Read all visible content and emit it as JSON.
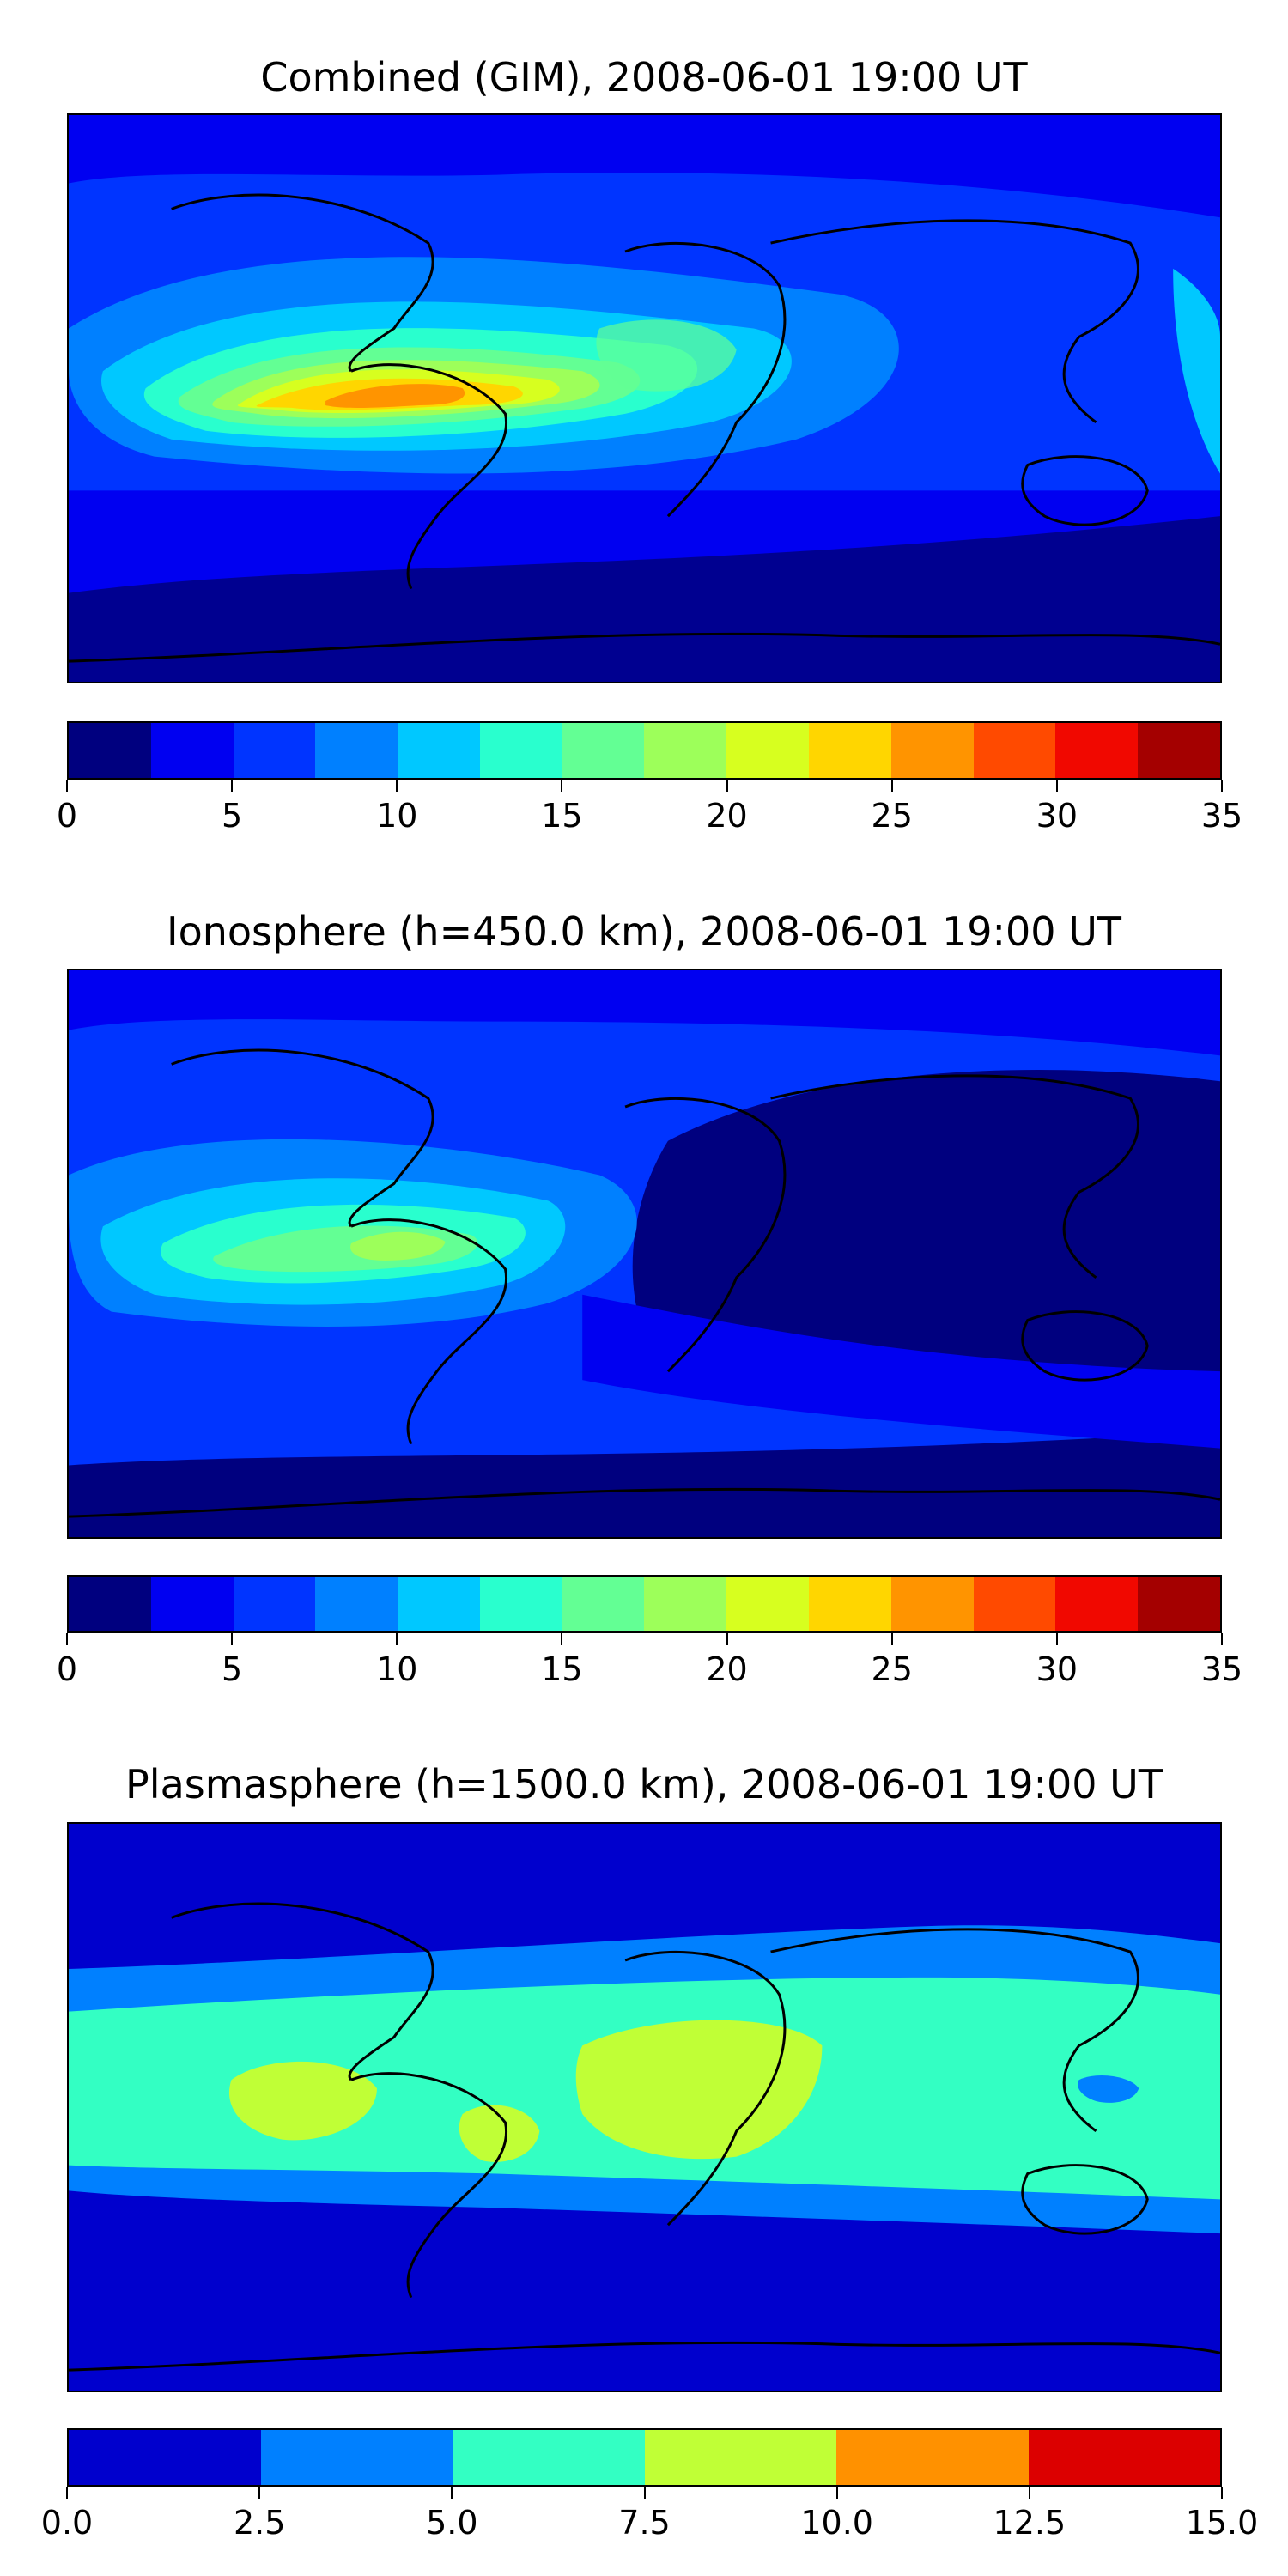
{
  "panels": [
    {
      "title": "Combined (GIM), 2008-06-01 19:00 UT",
      "colorbar": {
        "colors": [
          "#00007f",
          "#0000f1",
          "#0034ff",
          "#0080ff",
          "#00c8ff",
          "#29ffce",
          "#63ff94",
          "#9dff5a",
          "#d7ff1f",
          "#ffd600",
          "#ff9400",
          "#ff4a00",
          "#f10800",
          "#a40000"
        ],
        "ticks": [
          "0",
          "5",
          "10",
          "15",
          "20",
          "25",
          "30",
          "35"
        ]
      }
    },
    {
      "title": "Ionosphere  (h=450.0 km), 2008-06-01 19:00 UT",
      "colorbar": {
        "colors": [
          "#00007f",
          "#0000f1",
          "#0034ff",
          "#0080ff",
          "#00c8ff",
          "#29ffce",
          "#63ff94",
          "#9dff5a",
          "#d7ff1f",
          "#ffd600",
          "#ff9400",
          "#ff4a00",
          "#f10800",
          "#a40000"
        ],
        "ticks": [
          "0",
          "5",
          "10",
          "15",
          "20",
          "25",
          "30",
          "35"
        ]
      }
    },
    {
      "title": "Plasmasphere (h=1500.0 km), 2008-06-01 19:00 UT",
      "colorbar": {
        "colors": [
          "#0000cd",
          "#0080ff",
          "#33ffc3",
          "#c0ff36",
          "#ff9100",
          "#dc0000"
        ],
        "ticks": [
          "0.0",
          "2.5",
          "5.0",
          "7.5",
          "10.0",
          "12.5",
          "15.0"
        ]
      }
    }
  ]
}
